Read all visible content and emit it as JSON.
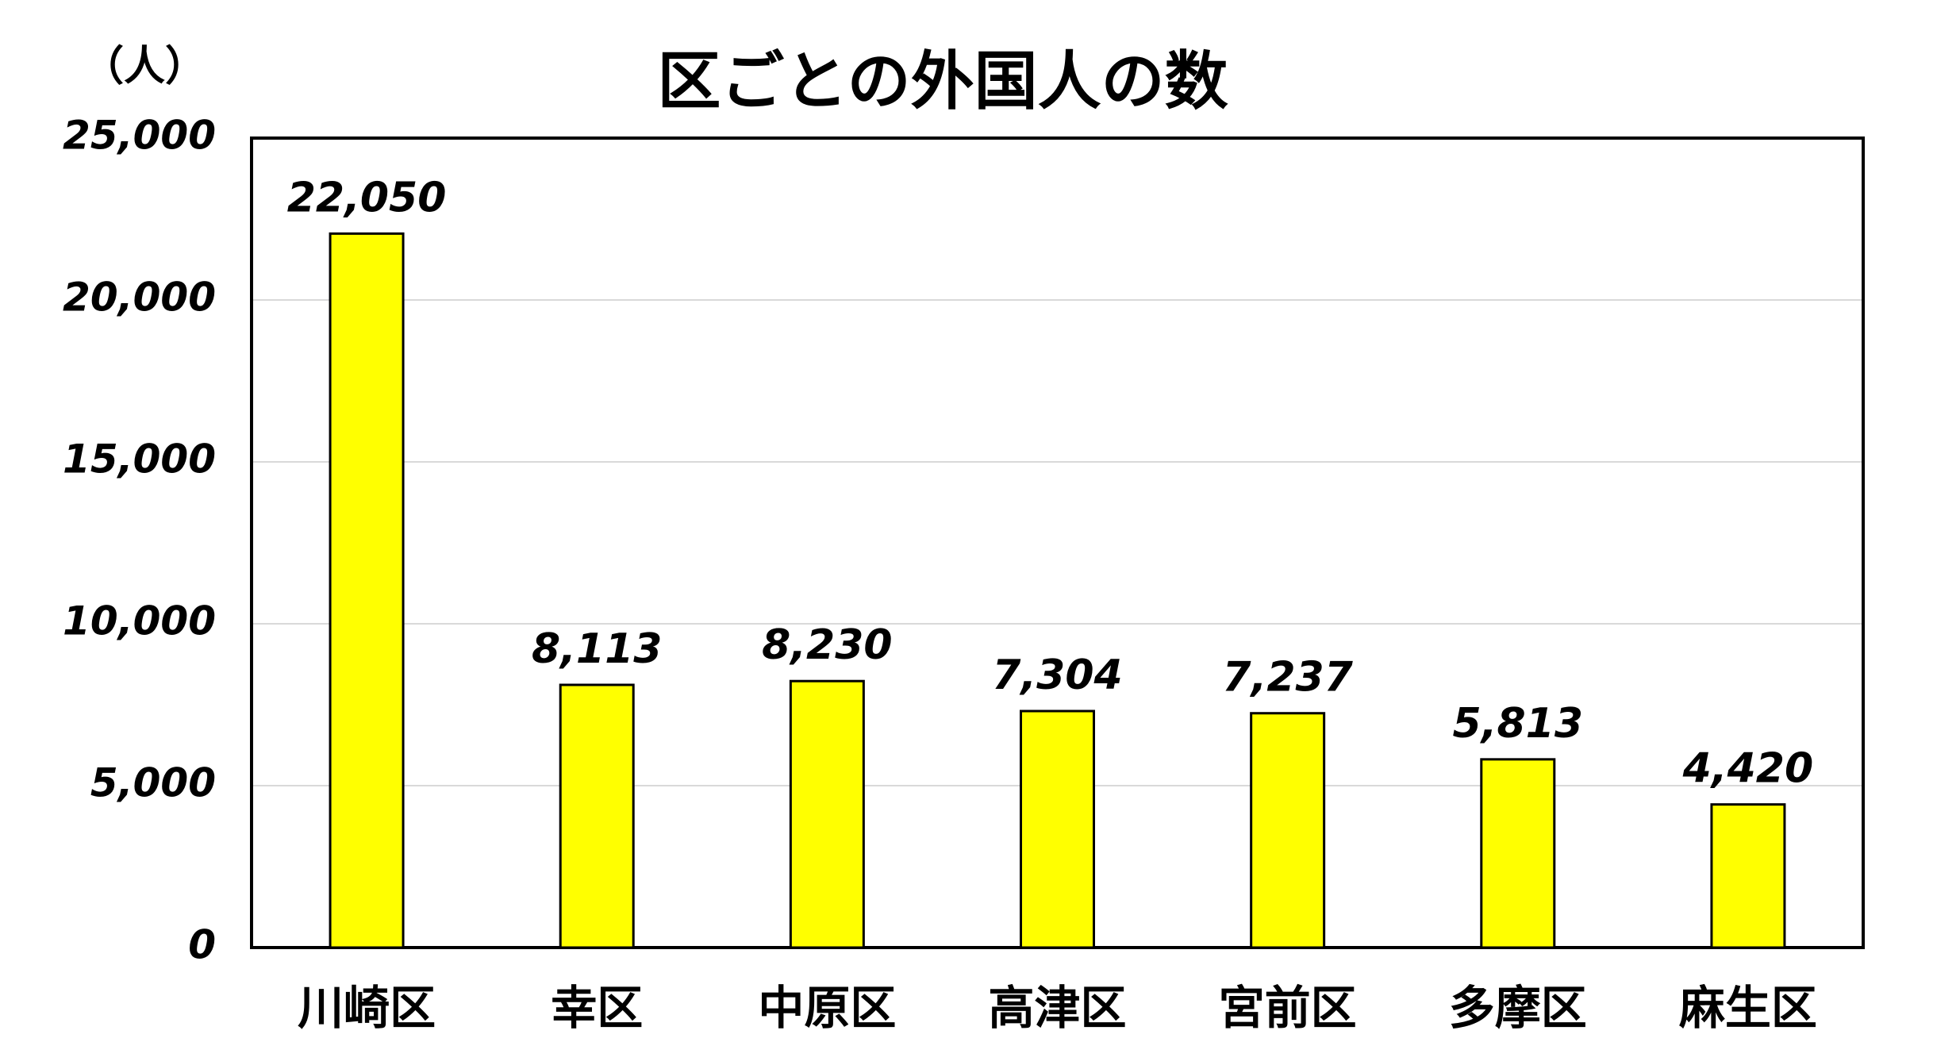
{
  "chart_data": {
    "type": "bar",
    "title": "区ごとの外国人の数",
    "y_label": "（人）",
    "categories": [
      "川崎区",
      "幸区",
      "中原区",
      "高津区",
      "宮前区",
      "多摩区",
      "麻生区"
    ],
    "values": [
      22050,
      8113,
      8230,
      7304,
      7237,
      5813,
      4420
    ],
    "value_labels": [
      "22,050",
      "8,113",
      "8,230",
      "7,304",
      "7,237",
      "5,813",
      "4,420"
    ],
    "color": "#ffff00",
    "ylim": [
      0,
      25000
    ],
    "yticks": [
      0,
      {
        "value": 5000,
        "label": "5,000"
      },
      {
        "value": 10000,
        "label": "10,000"
      },
      {
        "value": 15000,
        "label": "15,000"
      },
      {
        "value": 20000,
        "label": "20,000"
      },
      {
        "value": 25000,
        "label": "25,000"
      }
    ],
    "grid": true
  }
}
